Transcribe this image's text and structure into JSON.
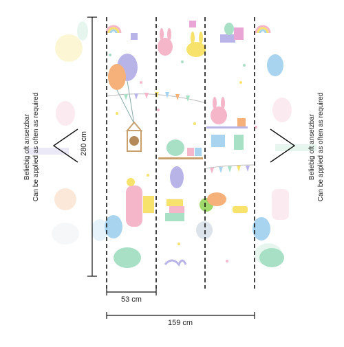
{
  "left_note": {
    "line1": "Beliebig oft ansetzbar",
    "line2": "Can be applied as often as required"
  },
  "right_note": {
    "line1": "Beliebig oft ansetzbar",
    "line2": "Can be applied as often as required"
  },
  "dimensions": {
    "height": "280 cm",
    "panel_width": "53 cm",
    "total_width": "159 cm"
  },
  "colors": {
    "pink": "#f4b6c8",
    "lavender": "#b9b4e8",
    "yellow": "#f7e26b",
    "mint": "#a8e0c6",
    "blue": "#a9d4f0",
    "orange": "#f6b07a",
    "green": "#9fd86b"
  }
}
